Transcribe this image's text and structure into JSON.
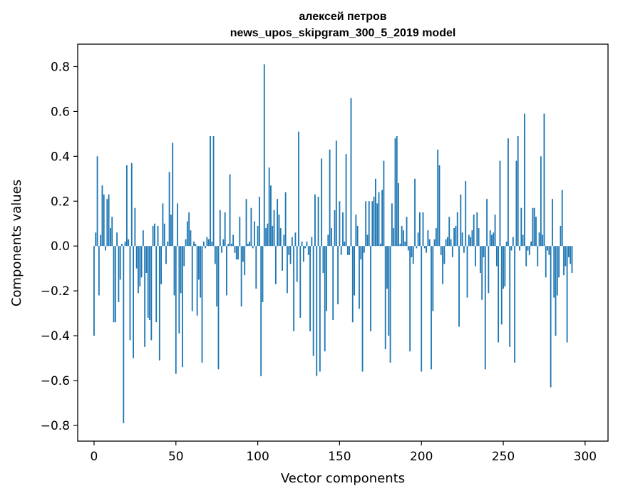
{
  "chart_data": {
    "type": "bar",
    "title": "алексей петров",
    "subtitle": "news_upos_skipgram_300_5_2019 model",
    "xlabel": "Vector components",
    "ylabel": "Components values",
    "xlim": [
      -10,
      314
    ],
    "ylim": [
      -0.87,
      0.9
    ],
    "xticks": [
      0,
      50,
      100,
      150,
      200,
      250,
      300
    ],
    "xtick_labels": [
      "0",
      "50",
      "100",
      "150",
      "200",
      "250",
      "300"
    ],
    "yticks": [
      -0.8,
      -0.6,
      -0.4,
      -0.2,
      0.0,
      0.2,
      0.4,
      0.6,
      0.8
    ],
    "ytick_labels": [
      "−0.8",
      "−0.6",
      "−0.4",
      "−0.2",
      "0.0",
      "0.2",
      "0.4",
      "0.6",
      "0.8"
    ],
    "grid": false,
    "bar_color": "#1f77b4",
    "series": [
      {
        "values": [
          -0.4,
          0.06,
          0.4,
          -0.22,
          0.05,
          0.27,
          0.23,
          -0.02,
          0.21,
          0.23,
          0.08,
          0.13,
          -0.34,
          -0.34,
          0.06,
          -0.25,
          -0.15,
          0.01,
          -0.79,
          0.02,
          0.36,
          0.03,
          -0.42,
          0.37,
          -0.5,
          0.17,
          -0.1,
          -0.21,
          -0.18,
          -0.14,
          0.07,
          -0.45,
          -0.12,
          -0.32,
          -0.33,
          -0.42,
          0.09,
          0.1,
          -0.34,
          0.09,
          -0.51,
          -0.17,
          0.19,
          0.1,
          -0.08,
          0.02,
          0.33,
          0.14,
          0.46,
          -0.22,
          -0.57,
          0.19,
          -0.39,
          -0.21,
          -0.54,
          -0.09,
          0.03,
          0.11,
          0.15,
          0.07,
          -0.29,
          0.02,
          0.01,
          -0.31,
          -0.15,
          -0.23,
          -0.52,
          0.02,
          -0.01,
          0.04,
          0.03,
          0.49,
          0.02,
          0.49,
          -0.08,
          -0.27,
          -0.55,
          0.16,
          -0.03,
          0.03,
          0.15,
          -0.22,
          0.01,
          0.32,
          0.01,
          0.05,
          -0.03,
          -0.06,
          -0.06,
          0.13,
          -0.27,
          -0.07,
          -0.13,
          0.21,
          0.01,
          0.02,
          0.17,
          -0.01,
          0.11,
          -0.19,
          0.09,
          0.22,
          -0.58,
          -0.25,
          0.81,
          0.08,
          0.1,
          0.35,
          0.27,
          0.09,
          0.16,
          -0.17,
          0.21,
          0.14,
          0.08,
          -0.11,
          0.05,
          0.24,
          -0.21,
          -0.04,
          -0.08,
          0.04,
          -0.38,
          0.06,
          -0.16,
          0.51,
          -0.32,
          0.02,
          -0.07,
          -0.01,
          0.02,
          -0.04,
          -0.38,
          0.04,
          -0.49,
          0.23,
          -0.58,
          0.22,
          -0.56,
          0.39,
          -0.12,
          -0.47,
          -0.29,
          0.05,
          0.43,
          0.08,
          -0.33,
          0.16,
          0.47,
          -0.26,
          0.2,
          -0.04,
          0.15,
          0.02,
          0.41,
          -0.04,
          -0.04,
          0.66,
          -0.34,
          -0.22,
          0.14,
          0.09,
          -0.28,
          -0.06,
          -0.56,
          -0.03,
          0.2,
          0.05,
          0.2,
          -0.38,
          0.2,
          0.22,
          0.3,
          0.19,
          0.24,
          0.01,
          0.25,
          0.38,
          -0.46,
          -0.19,
          -0.4,
          -0.52,
          0.19,
          0.08,
          0.48,
          0.49,
          0.28,
          0.01,
          0.09,
          0.07,
          0.02,
          0.13,
          -0.02,
          -0.47,
          -0.05,
          -0.08,
          0.3,
          -0.01,
          0.06,
          0.15,
          -0.56,
          0.15,
          -0.01,
          -0.03,
          0.07,
          0.03,
          -0.55,
          -0.29,
          0.03,
          0.08,
          0.43,
          0.36,
          -0.04,
          -0.17,
          -0.08,
          0.03,
          0.04,
          0.13,
          0.03,
          -0.05,
          0.08,
          0.09,
          0.15,
          -0.36,
          0.23,
          0.06,
          -0.03,
          0.29,
          -0.23,
          0.05,
          0.04,
          0.07,
          0.14,
          -0.09,
          0.15,
          0.08,
          -0.12,
          -0.24,
          -0.05,
          -0.55,
          0.21,
          -0.21,
          0.07,
          0.05,
          0.06,
          0.14,
          -0.09,
          -0.43,
          0.38,
          -0.35,
          -0.19,
          -0.18,
          0.02,
          0.48,
          -0.45,
          -0.02,
          0.04,
          -0.52,
          0.38,
          0.49,
          -0.02,
          0.17,
          0.05,
          0.59,
          -0.09,
          -0.02,
          -0.04,
          0.02,
          0.17,
          0.17,
          0.13,
          -0.09,
          0.06,
          0.4,
          0.05,
          0.59,
          -0.14,
          -0.02,
          -0.04,
          -0.63,
          0.21,
          -0.23,
          -0.4,
          -0.22,
          -0.14,
          0.09,
          0.25,
          -0.13,
          -0.09,
          -0.43,
          -0.05,
          -0.08,
          -0.12
        ]
      }
    ]
  }
}
